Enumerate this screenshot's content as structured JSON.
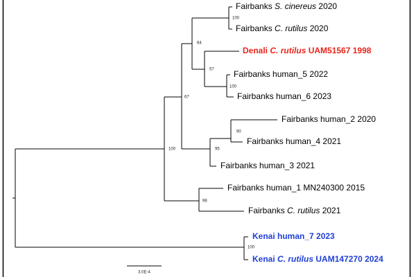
{
  "tree": {
    "leaves": [
      {
        "parts": [
          {
            "text": "Fairbanks "
          },
          {
            "text": "S. cinereus",
            "italic": true
          },
          {
            "text": " 2020"
          }
        ]
      },
      {
        "parts": [
          {
            "text": "Fairbanks "
          },
          {
            "text": "C. rutilus",
            "italic": true
          },
          {
            "text": " 2020"
          }
        ]
      },
      {
        "parts": [
          {
            "text": "Denali "
          },
          {
            "text": "C. rutilus",
            "italic": true
          },
          {
            "text": " UAM51567 1998"
          }
        ],
        "color": "#e8251b",
        "bold": true
      },
      {
        "parts": [
          {
            "text": "Fairbanks human_5 2022"
          }
        ]
      },
      {
        "parts": [
          {
            "text": "Fairbanks human_6 2023"
          }
        ]
      },
      {
        "parts": [
          {
            "text": "Fairbanks human_2 2020"
          }
        ]
      },
      {
        "parts": [
          {
            "text": "Fairbanks human_4 2021"
          }
        ]
      },
      {
        "parts": [
          {
            "text": "Fairbanks human_3 2021"
          }
        ]
      },
      {
        "parts": [
          {
            "text": "Fairbanks human_1 MN240300 2015"
          }
        ]
      },
      {
        "parts": [
          {
            "text": "Fairbanks "
          },
          {
            "text": "C. rutilus",
            "italic": true
          },
          {
            "text": " 2021"
          }
        ]
      },
      {
        "parts": [
          {
            "text": "Kenai human_7 2023"
          }
        ],
        "color": "#1f3fd6",
        "bold": true
      },
      {
        "parts": [
          {
            "text": "Kenai "
          },
          {
            "text": "C. rutilus",
            "italic": true
          },
          {
            "text": " UAM147270 2024"
          }
        ],
        "color": "#1f3fd6",
        "bold": true
      }
    ],
    "bootstraps": [
      100,
      64,
      57,
      100,
      67,
      90,
      95,
      100,
      98,
      100
    ],
    "scale_label": "3.0E-4"
  }
}
